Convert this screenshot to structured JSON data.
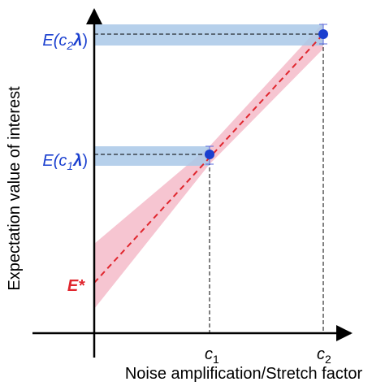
{
  "y_axis_label": "Expectation value of interest",
  "x_axis_label": "Noise amplification/Stretch factor",
  "labels": {
    "e_c2": [
      "E",
      "(c",
      "2",
      "λ",
      ")"
    ],
    "e_c1": [
      "E",
      "(c",
      "1",
      "λ",
      ")"
    ],
    "e_star": "E*",
    "c1": [
      "c",
      "1"
    ],
    "c2": [
      "c",
      "2"
    ]
  }
}
